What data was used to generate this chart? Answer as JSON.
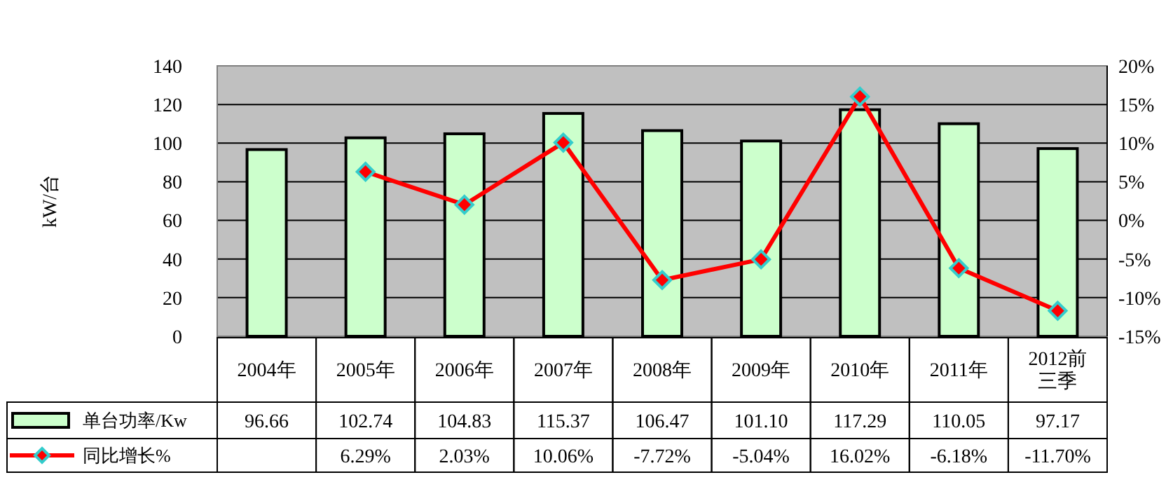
{
  "chart_data": {
    "type": "bar",
    "ylabel": "kW/台",
    "categories": [
      "2004年",
      "2005年",
      "2006年",
      "2007年",
      "2008年",
      "2009年",
      "2010年",
      "2011年",
      "2012前三季"
    ],
    "series": [
      {
        "name": "单台功率/Kw",
        "color": "#ccffcc",
        "values": [
          96.66,
          102.74,
          104.83,
          115.37,
          106.47,
          101.1,
          117.29,
          110.05,
          97.17
        ],
        "value_labels": [
          "96.66",
          "102.74",
          "104.83",
          "115.37",
          "106.47",
          "101.10",
          "117.29",
          "110.05",
          "97.17"
        ]
      },
      {
        "name": "同比增长%",
        "type": "line",
        "axis": "y2",
        "color": "#ff0000",
        "marker": "diamond",
        "values": [
          null,
          6.29,
          2.03,
          10.06,
          -7.72,
          -5.04,
          16.02,
          -6.18,
          -11.7
        ],
        "value_labels": [
          null,
          "6.29%",
          "2.03%",
          "10.06%",
          "-7.72%",
          "-5.04%",
          "16.02%",
          "-6.18%",
          "-11.70%"
        ]
      }
    ],
    "ylim": [
      0,
      140
    ],
    "yticks": [
      0,
      20,
      40,
      60,
      80,
      100,
      120,
      140
    ],
    "y2lim": [
      -15,
      20
    ],
    "y2ticks": [
      {
        "value": -15,
        "label": "-15%"
      },
      {
        "value": -10,
        "label": "-10%"
      },
      {
        "value": -5,
        "label": "-5%"
      },
      {
        "value": 0,
        "label": "0%"
      },
      {
        "value": 5,
        "label": "5%"
      },
      {
        "value": 10,
        "label": "10%"
      },
      {
        "value": 15,
        "label": "15%"
      },
      {
        "value": 20,
        "label": "20%"
      }
    ],
    "grid": "y",
    "legend": "bottom"
  }
}
